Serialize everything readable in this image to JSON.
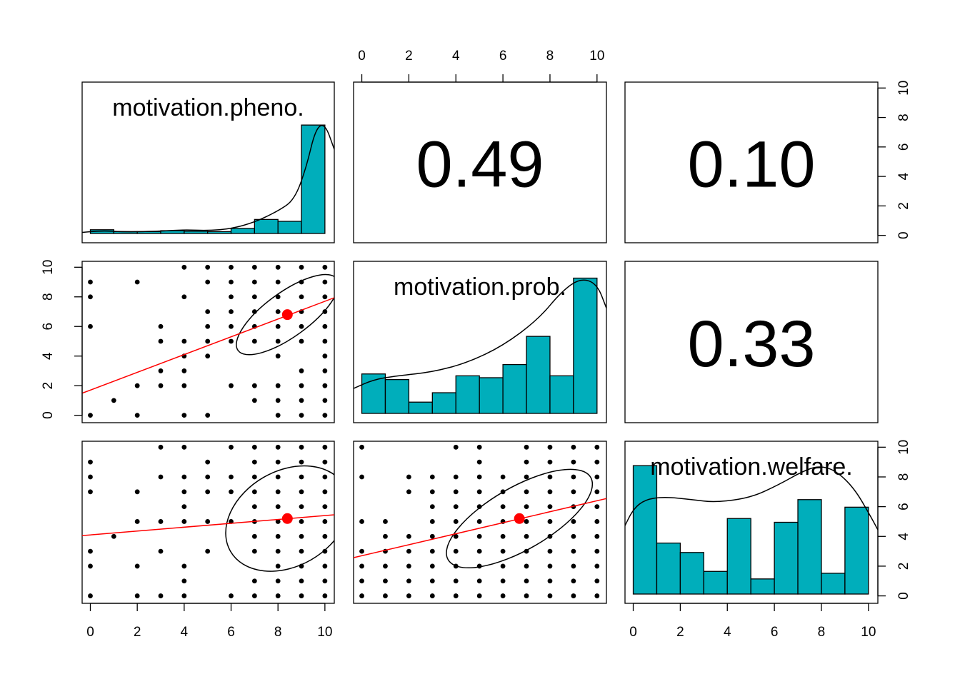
{
  "chart_data": {
    "type": "scatter-matrix",
    "title": "",
    "variables": [
      "motivation.pheno.",
      "motivation.prob.",
      "motivation.welfare."
    ],
    "axis_range": [
      0,
      10
    ],
    "ticks": [
      "0",
      "2",
      "4",
      "6",
      "8",
      "10"
    ],
    "correlations": [
      {
        "row": 0,
        "col": 1,
        "label": "0.49",
        "value": 0.49
      },
      {
        "row": 0,
        "col": 2,
        "label": "0.10",
        "value": 0.1
      },
      {
        "row": 1,
        "col": 2,
        "label": "0.33",
        "value": 0.33
      }
    ],
    "histograms": [
      {
        "variable": "motivation.pheno.",
        "bin_edges": [
          0,
          1,
          2,
          3,
          4,
          5,
          6,
          7,
          8,
          9,
          10
        ],
        "relative_heights": [
          0.2,
          0.1,
          0.1,
          0.15,
          0.12,
          0.1,
          0.27,
          0.75,
          0.65,
          5.8
        ],
        "density_curve": [
          [
            -0.4,
            0.05
          ],
          [
            0.5,
            0.15
          ],
          [
            1.5,
            0.08
          ],
          [
            3,
            0.12
          ],
          [
            4,
            0.2
          ],
          [
            5,
            0.15
          ],
          [
            6,
            0.25
          ],
          [
            7,
            0.6
          ],
          [
            8,
            1.2
          ],
          [
            8.7,
            1.8
          ],
          [
            9.2,
            3.5
          ],
          [
            9.6,
            5.6
          ],
          [
            10,
            5.9
          ],
          [
            10.4,
            4.5
          ]
        ]
      },
      {
        "variable": "motivation.prob.",
        "bin_edges": [
          0,
          1,
          2,
          3,
          4,
          5,
          6,
          7,
          8,
          9,
          10
        ],
        "relative_heights": [
          2.1,
          1.8,
          0.6,
          1.1,
          2.0,
          1.9,
          2.6,
          4.1,
          2.0,
          7.2
        ],
        "density_curve": [
          [
            -0.4,
            1.3
          ],
          [
            0.5,
            1.8
          ],
          [
            1.5,
            2.0
          ],
          [
            3,
            2.2
          ],
          [
            4.5,
            2.7
          ],
          [
            6,
            3.6
          ],
          [
            7.5,
            5.0
          ],
          [
            8.5,
            6.5
          ],
          [
            9.3,
            7.2
          ],
          [
            10,
            6.9
          ],
          [
            10.4,
            5.6
          ]
        ]
      },
      {
        "variable": "motivation.welfare.",
        "bin_edges": [
          0,
          1,
          2,
          3,
          4,
          5,
          6,
          7,
          8,
          9,
          10
        ],
        "relative_heights": [
          6.8,
          2.7,
          2.2,
          1.2,
          4.0,
          0.8,
          3.8,
          5.0,
          1.1,
          4.6
        ],
        "density_curve": [
          [
            -0.4,
            3.5
          ],
          [
            0,
            4.5
          ],
          [
            0.5,
            5.0
          ],
          [
            1.3,
            5.15
          ],
          [
            2.5,
            5.0
          ],
          [
            3.5,
            4.85
          ],
          [
            5,
            5.1
          ],
          [
            6.2,
            5.8
          ],
          [
            7.2,
            6.5
          ],
          [
            7.9,
            6.8
          ],
          [
            8.6,
            6.55
          ],
          [
            9.4,
            5.6
          ],
          [
            10.1,
            4.1
          ],
          [
            10.4,
            3.4
          ]
        ]
      }
    ],
    "scatter_panels": [
      {
        "x_variable": "motivation.pheno.",
        "y_variable": "motivation.prob.",
        "points": [
          [
            0,
            9
          ],
          [
            0,
            8
          ],
          [
            0,
            6
          ],
          [
            0,
            0
          ],
          [
            1,
            1
          ],
          [
            2,
            9
          ],
          [
            2,
            2
          ],
          [
            2,
            0
          ],
          [
            3,
            6
          ],
          [
            3,
            5
          ],
          [
            3,
            3
          ],
          [
            3,
            2
          ],
          [
            4,
            10
          ],
          [
            4,
            8
          ],
          [
            4,
            5
          ],
          [
            4,
            4
          ],
          [
            4,
            3
          ],
          [
            4,
            2
          ],
          [
            4,
            0
          ],
          [
            5,
            10
          ],
          [
            5,
            9
          ],
          [
            5,
            7
          ],
          [
            5,
            6
          ],
          [
            5,
            5
          ],
          [
            5,
            4
          ],
          [
            5,
            0
          ],
          [
            6,
            10
          ],
          [
            6,
            9
          ],
          [
            6,
            8
          ],
          [
            6,
            7
          ],
          [
            6,
            6
          ],
          [
            6,
            5
          ],
          [
            6,
            2
          ],
          [
            7,
            10
          ],
          [
            7,
            9
          ],
          [
            7,
            8
          ],
          [
            7,
            7
          ],
          [
            7,
            6
          ],
          [
            7,
            5
          ],
          [
            7,
            2
          ],
          [
            7,
            1
          ],
          [
            8,
            10
          ],
          [
            8,
            9
          ],
          [
            8,
            8
          ],
          [
            8,
            7
          ],
          [
            8,
            6
          ],
          [
            8,
            5
          ],
          [
            8,
            4
          ],
          [
            8,
            2
          ],
          [
            8,
            1
          ],
          [
            8,
            0
          ],
          [
            9,
            10
          ],
          [
            9,
            9
          ],
          [
            9,
            8
          ],
          [
            9,
            7
          ],
          [
            9,
            6
          ],
          [
            9,
            5
          ],
          [
            9,
            3
          ],
          [
            9,
            2
          ],
          [
            9,
            1
          ],
          [
            9,
            0
          ],
          [
            10,
            10
          ],
          [
            10,
            9
          ],
          [
            10,
            8
          ],
          [
            10,
            7
          ],
          [
            10,
            6
          ],
          [
            10,
            5
          ],
          [
            10,
            4
          ],
          [
            10,
            3
          ],
          [
            10,
            2
          ],
          [
            10,
            1
          ],
          [
            10,
            0
          ]
        ],
        "fit_line": {
          "intercept": 1.7,
          "slope": 0.6
        },
        "mean": [
          8.4,
          6.8
        ],
        "ellipse": {
          "rx": 2.6,
          "ry": 1.5,
          "angle_deg": 36
        }
      },
      {
        "x_variable": "motivation.pheno.",
        "y_variable": "motivation.welfare.",
        "points": [
          [
            0,
            9
          ],
          [
            0,
            8
          ],
          [
            0,
            7
          ],
          [
            0,
            3
          ],
          [
            0,
            2
          ],
          [
            0,
            0
          ],
          [
            1,
            4
          ],
          [
            2,
            7
          ],
          [
            2,
            5
          ],
          [
            2,
            2
          ],
          [
            2,
            0
          ],
          [
            3,
            10
          ],
          [
            3,
            8
          ],
          [
            3,
            5
          ],
          [
            3,
            3
          ],
          [
            3,
            0
          ],
          [
            4,
            10
          ],
          [
            4,
            8
          ],
          [
            4,
            7
          ],
          [
            4,
            6
          ],
          [
            4,
            5
          ],
          [
            4,
            2
          ],
          [
            4,
            1
          ],
          [
            4,
            0
          ],
          [
            5,
            9
          ],
          [
            5,
            8
          ],
          [
            5,
            7
          ],
          [
            5,
            5
          ],
          [
            5,
            3
          ],
          [
            6,
            10
          ],
          [
            6,
            8
          ],
          [
            6,
            7
          ],
          [
            6,
            5
          ],
          [
            6,
            0
          ],
          [
            7,
            10
          ],
          [
            7,
            9
          ],
          [
            7,
            8
          ],
          [
            7,
            7
          ],
          [
            7,
            6
          ],
          [
            7,
            5
          ],
          [
            7,
            4
          ],
          [
            7,
            3
          ],
          [
            7,
            1
          ],
          [
            7,
            0
          ],
          [
            8,
            10
          ],
          [
            8,
            9
          ],
          [
            8,
            8
          ],
          [
            8,
            7
          ],
          [
            8,
            6
          ],
          [
            8,
            5
          ],
          [
            8,
            4
          ],
          [
            8,
            3
          ],
          [
            8,
            2
          ],
          [
            8,
            1
          ],
          [
            8,
            0
          ],
          [
            9,
            10
          ],
          [
            9,
            9
          ],
          [
            9,
            8
          ],
          [
            9,
            7
          ],
          [
            9,
            6
          ],
          [
            9,
            5
          ],
          [
            9,
            4
          ],
          [
            9,
            3
          ],
          [
            9,
            2
          ],
          [
            9,
            1
          ],
          [
            9,
            0
          ],
          [
            10,
            10
          ],
          [
            10,
            9
          ],
          [
            10,
            8
          ],
          [
            10,
            7
          ],
          [
            10,
            6
          ],
          [
            10,
            5
          ],
          [
            10,
            4
          ],
          [
            10,
            3
          ],
          [
            10,
            2
          ],
          [
            10,
            1
          ],
          [
            10,
            0
          ]
        ],
        "fit_line": {
          "intercept": 4.1,
          "slope": 0.13
        },
        "mean": [
          8.4,
          5.2
        ],
        "ellipse": {
          "rx": 2.8,
          "ry": 3.2,
          "angle_deg": 30
        }
      },
      {
        "x_variable": "motivation.prob.",
        "y_variable": "motivation.welfare.",
        "points": [
          [
            0,
            10
          ],
          [
            0,
            8
          ],
          [
            0,
            5
          ],
          [
            0,
            3
          ],
          [
            0,
            2
          ],
          [
            0,
            1
          ],
          [
            0,
            0
          ],
          [
            1,
            5
          ],
          [
            1,
            4
          ],
          [
            1,
            3
          ],
          [
            1,
            2
          ],
          [
            1,
            1
          ],
          [
            1,
            0
          ],
          [
            2,
            8
          ],
          [
            2,
            7
          ],
          [
            2,
            4
          ],
          [
            2,
            3
          ],
          [
            2,
            2
          ],
          [
            2,
            1
          ],
          [
            2,
            0
          ],
          [
            3,
            8
          ],
          [
            3,
            7
          ],
          [
            3,
            6
          ],
          [
            3,
            5
          ],
          [
            3,
            4
          ],
          [
            3,
            3
          ],
          [
            3,
            2
          ],
          [
            3,
            1
          ],
          [
            3,
            0
          ],
          [
            4,
            10
          ],
          [
            4,
            8
          ],
          [
            4,
            7
          ],
          [
            4,
            6
          ],
          [
            4,
            5
          ],
          [
            4,
            4
          ],
          [
            4,
            3
          ],
          [
            4,
            2
          ],
          [
            4,
            1
          ],
          [
            4,
            0
          ],
          [
            5,
            10
          ],
          [
            5,
            9
          ],
          [
            5,
            8
          ],
          [
            5,
            7
          ],
          [
            5,
            6
          ],
          [
            5,
            5
          ],
          [
            5,
            4
          ],
          [
            5,
            3
          ],
          [
            5,
            2
          ],
          [
            5,
            1
          ],
          [
            5,
            0
          ],
          [
            6,
            8
          ],
          [
            6,
            7
          ],
          [
            6,
            6
          ],
          [
            6,
            5
          ],
          [
            6,
            4
          ],
          [
            6,
            3
          ],
          [
            6,
            2
          ],
          [
            6,
            1
          ],
          [
            6,
            0
          ],
          [
            7,
            10
          ],
          [
            7,
            9
          ],
          [
            7,
            8
          ],
          [
            7,
            7
          ],
          [
            7,
            6
          ],
          [
            7,
            5
          ],
          [
            7,
            4
          ],
          [
            7,
            3
          ],
          [
            7,
            2
          ],
          [
            7,
            1
          ],
          [
            7,
            0
          ],
          [
            8,
            10
          ],
          [
            8,
            9
          ],
          [
            8,
            8
          ],
          [
            8,
            7
          ],
          [
            8,
            6
          ],
          [
            8,
            5
          ],
          [
            8,
            4
          ],
          [
            8,
            3
          ],
          [
            8,
            2
          ],
          [
            8,
            1
          ],
          [
            8,
            0
          ],
          [
            9,
            10
          ],
          [
            9,
            9
          ],
          [
            9,
            8
          ],
          [
            9,
            7
          ],
          [
            9,
            6
          ],
          [
            9,
            5
          ],
          [
            9,
            4
          ],
          [
            9,
            3
          ],
          [
            9,
            2
          ],
          [
            9,
            1
          ],
          [
            9,
            0
          ],
          [
            10,
            10
          ],
          [
            10,
            9
          ],
          [
            10,
            8
          ],
          [
            10,
            7
          ],
          [
            10,
            6
          ],
          [
            10,
            5
          ],
          [
            10,
            4
          ],
          [
            10,
            3
          ],
          [
            10,
            2
          ],
          [
            10,
            1
          ],
          [
            10,
            0
          ]
        ],
        "fit_line": {
          "intercept": 2.7,
          "slope": 0.37
        },
        "mean": [
          6.7,
          5.2
        ],
        "ellipse": {
          "rx": 3.5,
          "ry": 2.1,
          "angle_deg": 30
        }
      }
    ],
    "colors": {
      "histogram_fill": "#00AEBB",
      "fit_line": "#FF0000",
      "mean_point": "#FF0000",
      "points": "#000000",
      "curves": "#000000"
    },
    "grid": false,
    "legend": "none"
  }
}
